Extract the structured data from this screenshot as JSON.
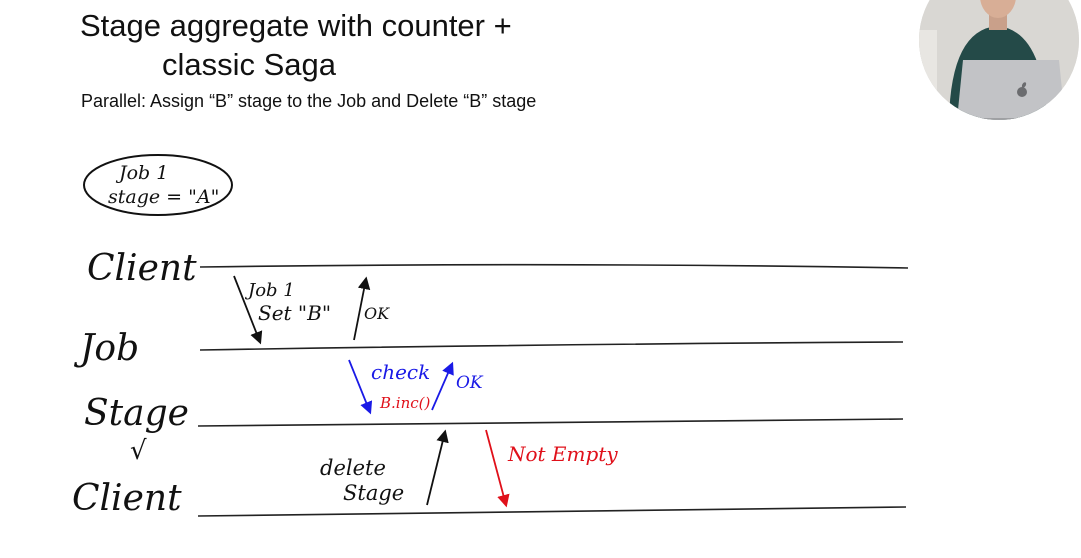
{
  "slide": {
    "title_line1": "Stage aggregate with counter +",
    "title_line2": "classic Saga",
    "subtitle": "Parallel: Assign “B” stage to the Job and Delete “B” stage"
  },
  "entity": {
    "line1": "Job 1",
    "line2": "stage = \"A\""
  },
  "lanes": [
    "Client",
    "Job",
    "Stage",
    "Client"
  ],
  "stage_checkmark": "√",
  "messages": {
    "set_line1": "Job 1",
    "set_line2": "Set \"B\"",
    "ok1": "OK",
    "check_line1": "check",
    "check_line2": "B.inc()",
    "ok2": "OK",
    "delete_line1": "delete",
    "delete_line2": "Stage",
    "not_empty": "Not Empty"
  },
  "colors": {
    "ink": "#111111",
    "blue": "#1a1ae6",
    "red": "#e0101a"
  },
  "webcam": {
    "icon": "apple-logo-icon"
  }
}
